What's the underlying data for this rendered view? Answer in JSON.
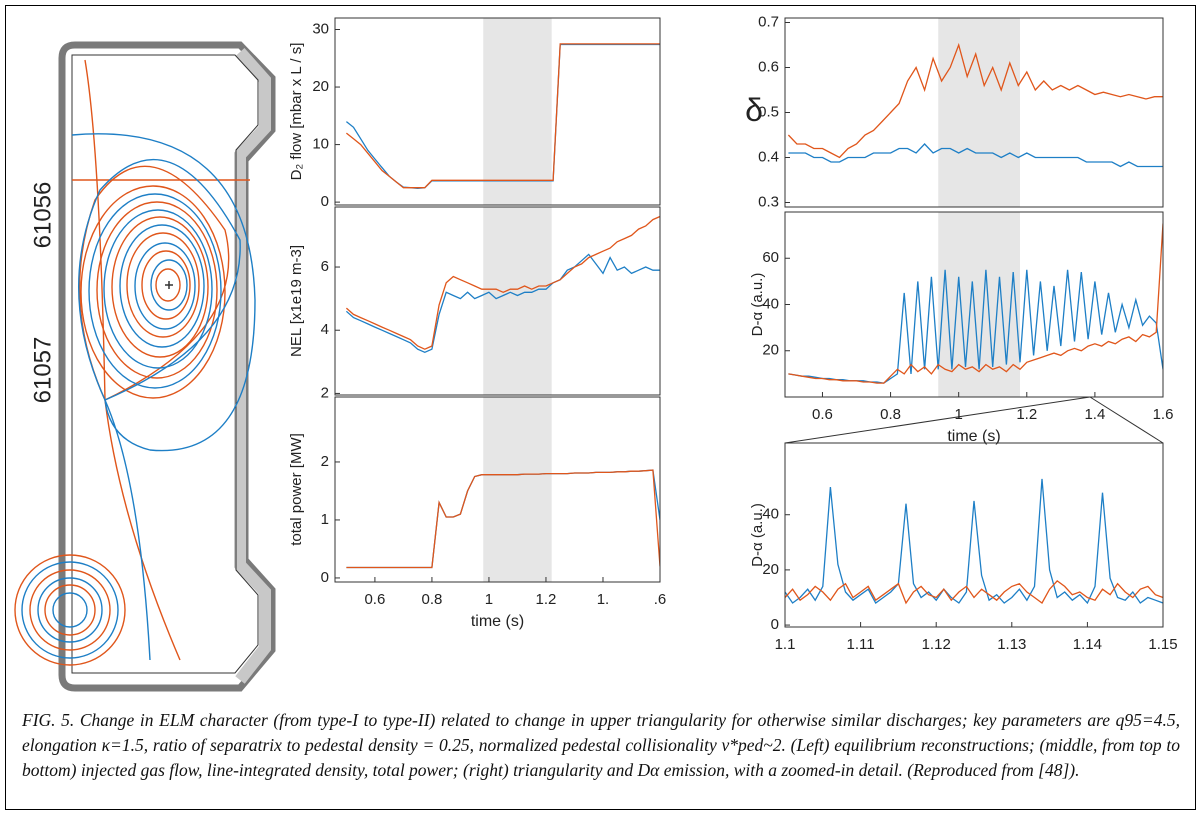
{
  "figure": {
    "shots": [
      {
        "name": "61056",
        "color": "#e0561b"
      },
      {
        "name": "61057",
        "color": "#1e7fc6"
      }
    ]
  },
  "chart_data": [
    {
      "type": "line",
      "ylabel": "D₂ flow [mbar x L / s]",
      "xlim": [
        0.46,
        1.6
      ],
      "ylim": [
        -0.5,
        32
      ],
      "yticks": [
        0,
        10,
        20,
        30
      ],
      "highlight_x": [
        0.98,
        1.22
      ],
      "x": [
        0.5,
        0.525,
        0.55,
        0.575,
        0.6,
        0.625,
        0.65,
        0.675,
        0.7,
        0.725,
        0.75,
        0.775,
        0.8,
        0.825,
        0.85,
        0.875,
        0.9,
        0.925,
        0.95,
        0.975,
        1.0,
        1.025,
        1.05,
        1.075,
        1.1,
        1.125,
        1.15,
        1.175,
        1.2,
        1.225,
        1.25,
        1.275,
        1.3,
        1.325,
        1.35,
        1.375,
        1.4,
        1.425,
        1.45,
        1.475,
        1.5,
        1.525,
        1.55,
        1.575,
        1.6
      ],
      "series": [
        {
          "color": "#1e7fc6",
          "values": [
            14,
            13,
            11,
            9,
            7.5,
            6,
            4.5,
            3.5,
            2.6,
            2.5,
            2.4,
            2.5,
            3.7,
            3.7,
            3.7,
            3.7,
            3.7,
            3.7,
            3.7,
            3.7,
            3.7,
            3.7,
            3.7,
            3.7,
            3.7,
            3.7,
            3.7,
            3.7,
            3.7,
            3.7,
            27.4,
            27.4,
            27.4,
            27.4,
            27.4,
            27.4,
            27.4,
            27.4,
            27.4,
            27.4,
            27.4,
            27.4,
            27.4,
            27.4,
            27.4
          ]
        },
        {
          "color": "#e0561b",
          "values": [
            12,
            11,
            10,
            8.5,
            7,
            5.5,
            4.5,
            3.5,
            2.5,
            2.5,
            2.5,
            2.5,
            3.8,
            3.8,
            3.8,
            3.8,
            3.8,
            3.8,
            3.8,
            3.8,
            3.8,
            3.8,
            3.8,
            3.8,
            3.8,
            3.8,
            3.8,
            3.8,
            3.8,
            3.8,
            27.5,
            27.5,
            27.5,
            27.5,
            27.5,
            27.5,
            27.5,
            27.5,
            27.5,
            27.5,
            27.5,
            27.5,
            27.5,
            27.5,
            27.5
          ]
        }
      ]
    },
    {
      "type": "line",
      "ylabel": "NEL [x1e19 m-3]",
      "xlim": [
        0.46,
        1.6
      ],
      "ylim": [
        1.95,
        7.9
      ],
      "yticks": [
        2,
        4,
        6
      ],
      "highlight_x": [
        0.98,
        1.22
      ],
      "x": [
        0.5,
        0.525,
        0.55,
        0.575,
        0.6,
        0.625,
        0.65,
        0.675,
        0.7,
        0.725,
        0.75,
        0.775,
        0.8,
        0.825,
        0.85,
        0.875,
        0.9,
        0.925,
        0.95,
        0.975,
        1.0,
        1.025,
        1.05,
        1.075,
        1.1,
        1.125,
        1.15,
        1.175,
        1.2,
        1.225,
        1.25,
        1.275,
        1.3,
        1.325,
        1.35,
        1.375,
        1.4,
        1.425,
        1.45,
        1.475,
        1.5,
        1.525,
        1.55,
        1.575,
        1.6
      ],
      "series": [
        {
          "color": "#1e7fc6",
          "values": [
            4.6,
            4.4,
            4.3,
            4.2,
            4.1,
            4.0,
            3.9,
            3.8,
            3.7,
            3.6,
            3.4,
            3.3,
            3.4,
            4.5,
            5.2,
            5.1,
            5.0,
            5.2,
            5.0,
            5.1,
            5.2,
            5.0,
            5.1,
            5.2,
            5.1,
            5.2,
            5.2,
            5.3,
            5.3,
            5.5,
            5.6,
            5.9,
            6.0,
            6.2,
            6.4,
            6.1,
            5.8,
            6.3,
            5.9,
            6.0,
            5.8,
            5.9,
            6.0,
            5.9,
            5.9
          ]
        },
        {
          "color": "#e0561b",
          "values": [
            4.7,
            4.5,
            4.4,
            4.3,
            4.2,
            4.1,
            4.0,
            3.9,
            3.8,
            3.7,
            3.5,
            3.4,
            3.5,
            4.8,
            5.5,
            5.7,
            5.6,
            5.5,
            5.4,
            5.3,
            5.3,
            5.3,
            5.2,
            5.3,
            5.3,
            5.4,
            5.3,
            5.4,
            5.4,
            5.5,
            5.6,
            5.8,
            6.0,
            6.1,
            6.3,
            6.4,
            6.5,
            6.6,
            6.8,
            6.9,
            7.0,
            7.2,
            7.3,
            7.5,
            7.6
          ]
        }
      ]
    },
    {
      "type": "line",
      "ylabel": "total power [MW]",
      "xlabel": "time (s)",
      "xlim": [
        0.46,
        1.6
      ],
      "ylim": [
        -0.07,
        3.12
      ],
      "yticks": [
        0,
        1,
        2
      ],
      "highlight_x": [
        0.98,
        1.22
      ],
      "xticks": [
        0.6,
        0.8,
        1,
        1.2,
        {
          "value": 1.4,
          "label": "1."
        },
        {
          "value": 1.6,
          "label": ".6"
        }
      ],
      "x": [
        0.5,
        0.525,
        0.55,
        0.575,
        0.6,
        0.625,
        0.65,
        0.675,
        0.7,
        0.725,
        0.75,
        0.775,
        0.8,
        0.825,
        0.85,
        0.875,
        0.9,
        0.925,
        0.95,
        0.975,
        1.0,
        1.025,
        1.05,
        1.075,
        1.1,
        1.125,
        1.15,
        1.175,
        1.2,
        1.225,
        1.25,
        1.275,
        1.3,
        1.325,
        1.35,
        1.375,
        1.4,
        1.425,
        1.45,
        1.475,
        1.5,
        1.525,
        1.55,
        1.575,
        1.6
      ],
      "series": [
        {
          "color": "#1e7fc6",
          "values": [
            0.18,
            0.18,
            0.18,
            0.18,
            0.18,
            0.18,
            0.18,
            0.18,
            0.18,
            0.18,
            0.18,
            0.18,
            0.18,
            1.3,
            1.05,
            1.05,
            1.1,
            1.5,
            1.75,
            1.78,
            1.78,
            1.78,
            1.78,
            1.78,
            1.78,
            1.79,
            1.79,
            1.79,
            1.8,
            1.8,
            1.8,
            1.8,
            1.81,
            1.81,
            1.81,
            1.82,
            1.82,
            1.82,
            1.83,
            1.83,
            1.84,
            1.84,
            1.85,
            1.86,
            1.0
          ]
        },
        {
          "color": "#e0561b",
          "values": [
            0.18,
            0.18,
            0.18,
            0.18,
            0.18,
            0.18,
            0.18,
            0.18,
            0.18,
            0.18,
            0.18,
            0.18,
            0.18,
            1.3,
            1.05,
            1.05,
            1.1,
            1.5,
            1.75,
            1.78,
            1.78,
            1.78,
            1.78,
            1.78,
            1.78,
            1.79,
            1.79,
            1.79,
            1.8,
            1.8,
            1.8,
            1.8,
            1.81,
            1.81,
            1.81,
            1.82,
            1.82,
            1.82,
            1.83,
            1.83,
            1.84,
            1.84,
            1.85,
            1.86,
            0.2
          ]
        }
      ]
    },
    {
      "type": "line",
      "ylabel": "δ",
      "xlim": [
        0.49,
        1.6
      ],
      "ylim": [
        0.29,
        0.71
      ],
      "yticks": [
        0.3,
        0.4,
        0.5,
        0.6,
        0.7
      ],
      "highlight_x": [
        0.94,
        1.18
      ],
      "x": [
        0.5,
        0.525,
        0.55,
        0.575,
        0.6,
        0.625,
        0.65,
        0.675,
        0.7,
        0.725,
        0.75,
        0.775,
        0.8,
        0.825,
        0.85,
        0.875,
        0.9,
        0.925,
        0.95,
        0.975,
        1.0,
        1.025,
        1.05,
        1.075,
        1.1,
        1.125,
        1.15,
        1.175,
        1.2,
        1.225,
        1.25,
        1.275,
        1.3,
        1.325,
        1.35,
        1.375,
        1.4,
        1.425,
        1.45,
        1.475,
        1.5,
        1.525,
        1.55,
        1.575,
        1.6
      ],
      "series": [
        {
          "color": "#1e7fc6",
          "values": [
            0.41,
            0.41,
            0.41,
            0.4,
            0.4,
            0.39,
            0.39,
            0.4,
            0.4,
            0.4,
            0.41,
            0.41,
            0.41,
            0.42,
            0.42,
            0.41,
            0.43,
            0.41,
            0.42,
            0.42,
            0.41,
            0.42,
            0.41,
            0.41,
            0.41,
            0.4,
            0.41,
            0.4,
            0.41,
            0.4,
            0.4,
            0.4,
            0.4,
            0.4,
            0.4,
            0.39,
            0.39,
            0.39,
            0.39,
            0.38,
            0.39,
            0.38,
            0.38,
            0.38,
            0.38
          ]
        },
        {
          "color": "#e0561b",
          "values": [
            0.45,
            0.43,
            0.43,
            0.42,
            0.42,
            0.41,
            0.4,
            0.42,
            0.43,
            0.45,
            0.46,
            0.48,
            0.5,
            0.52,
            0.57,
            0.6,
            0.55,
            0.62,
            0.57,
            0.6,
            0.65,
            0.58,
            0.63,
            0.56,
            0.6,
            0.55,
            0.61,
            0.56,
            0.59,
            0.55,
            0.57,
            0.55,
            0.56,
            0.55,
            0.56,
            0.55,
            0.54,
            0.545,
            0.54,
            0.535,
            0.54,
            0.535,
            0.53,
            0.535,
            0.535
          ]
        }
      ]
    },
    {
      "type": "line",
      "ylabel": "D-α (a.u.)",
      "xlabel": "time (s)",
      "xlim": [
        0.49,
        1.6
      ],
      "ylim": [
        0,
        80
      ],
      "yticks": [
        20,
        40,
        60
      ],
      "highlight_x": [
        0.94,
        1.18
      ],
      "xticks": [
        0.6,
        0.8,
        1,
        1.2,
        1.4,
        1.6
      ],
      "x": [
        0.5,
        0.52,
        0.54,
        0.56,
        0.58,
        0.6,
        0.62,
        0.64,
        0.66,
        0.68,
        0.7,
        0.72,
        0.74,
        0.76,
        0.78,
        0.8,
        0.82,
        0.84,
        0.86,
        0.88,
        0.9,
        0.92,
        0.94,
        0.96,
        0.98,
        1.0,
        1.02,
        1.04,
        1.06,
        1.08,
        1.1,
        1.12,
        1.14,
        1.16,
        1.18,
        1.2,
        1.22,
        1.24,
        1.26,
        1.28,
        1.3,
        1.32,
        1.34,
        1.36,
        1.38,
        1.4,
        1.42,
        1.44,
        1.46,
        1.48,
        1.5,
        1.52,
        1.54,
        1.56,
        1.58,
        1.6
      ],
      "series": [
        {
          "color": "#1e7fc6",
          "values": [
            10,
            9.5,
            9,
            9,
            8.5,
            8,
            8,
            7.5,
            7.5,
            7,
            7,
            7,
            6.5,
            6.5,
            6,
            8,
            10,
            45,
            10,
            50,
            12,
            52,
            12,
            55,
            12,
            52,
            13,
            50,
            12,
            55,
            13,
            52,
            14,
            54,
            15,
            55,
            18,
            50,
            20,
            48,
            22,
            55,
            24,
            54,
            25,
            50,
            27,
            45,
            28,
            40,
            30,
            42,
            31,
            35,
            32,
            12
          ]
        },
        {
          "color": "#e0561b",
          "values": [
            10,
            9.5,
            9,
            8.5,
            8,
            8,
            7.5,
            7.5,
            7,
            7,
            7,
            6.5,
            6.5,
            6,
            6,
            9,
            12,
            10,
            14,
            11,
            13,
            10,
            14,
            12,
            11,
            14,
            12,
            13,
            11,
            14,
            12,
            13,
            11,
            14,
            12,
            15,
            16,
            17,
            18,
            19,
            18,
            20,
            21,
            20,
            22,
            23,
            22,
            24,
            23,
            25,
            26,
            24,
            27,
            26,
            28,
            75
          ]
        }
      ]
    },
    {
      "type": "line",
      "ylabel": "D-α (a.u.)",
      "xlim": [
        1.1,
        1.15
      ],
      "ylim": [
        -0.7,
        66
      ],
      "yticks": [
        0,
        20,
        40
      ],
      "xticks": [
        1.1,
        1.11,
        1.12,
        1.13,
        1.14,
        1.15
      ],
      "x": [
        1.1,
        1.101,
        1.102,
        1.103,
        1.104,
        1.105,
        1.106,
        1.107,
        1.108,
        1.109,
        1.11,
        1.111,
        1.112,
        1.113,
        1.114,
        1.115,
        1.116,
        1.117,
        1.118,
        1.119,
        1.12,
        1.121,
        1.122,
        1.123,
        1.124,
        1.125,
        1.126,
        1.127,
        1.128,
        1.129,
        1.13,
        1.131,
        1.132,
        1.133,
        1.134,
        1.135,
        1.136,
        1.137,
        1.138,
        1.139,
        1.14,
        1.141,
        1.142,
        1.143,
        1.144,
        1.145,
        1.146,
        1.147,
        1.148,
        1.149,
        1.15
      ],
      "series": [
        {
          "color": "#1e7fc6",
          "values": [
            12,
            8,
            10,
            13,
            9,
            14,
            50,
            22,
            12,
            9,
            11,
            13,
            8,
            10,
            12,
            15,
            44,
            15,
            10,
            12,
            9,
            13,
            10,
            8,
            12,
            45,
            18,
            9,
            11,
            8,
            10,
            13,
            9,
            14,
            53,
            20,
            10,
            12,
            9,
            11,
            8,
            14,
            48,
            17,
            10,
            9,
            12,
            8,
            10,
            9,
            8
          ]
        },
        {
          "color": "#e0561b",
          "values": [
            10,
            13,
            9,
            11,
            14,
            12,
            9,
            13,
            15,
            10,
            12,
            14,
            9,
            11,
            13,
            15,
            8,
            12,
            14,
            11,
            10,
            13,
            9,
            12,
            14,
            10,
            13,
            11,
            9,
            12,
            14,
            15,
            12,
            10,
            8,
            13,
            16,
            14,
            11,
            12,
            10,
            9,
            13,
            11,
            15,
            12,
            10,
            13,
            14,
            11,
            10
          ]
        }
      ]
    }
  ],
  "caption": "FIG. 5. Change in ELM character (from type-I to type-II) related to change in upper triangularity for otherwise similar discharges; key parameters are q95=4.5, elongation κ=1.5, ratio of separatrix to pedestal density = 0.25, normalized pedestal collisionality ν*ped~2. (Left) equilibrium reconstructions; (middle, from top to bottom) injected gas flow, line-integrated density, total power; (right) triangularity and Dα emission, with a zoomed-in detail. (Reproduced from [48])."
}
